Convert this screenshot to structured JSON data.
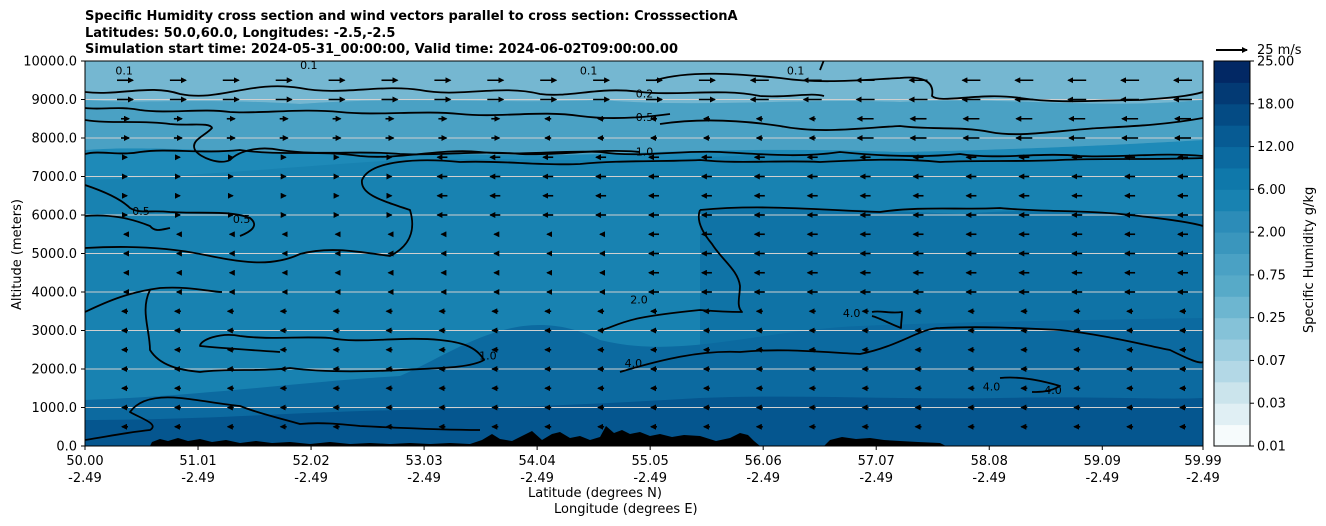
{
  "title": {
    "line1": "Specific Humidity cross section and wind vectors parallel to cross section: CrosssectionA",
    "line2": "Latitudes: 50.0,60.0, Longitudes: -2.5,-2.5",
    "line3": "Simulation start time: 2024-05-31_00:00:00, Valid time: 2024-06-02T09:00:00.00"
  },
  "chart_data": {
    "type": "contour",
    "xlabel": "Latitude (degrees N)",
    "xlabel2": "Longitude (degrees E)",
    "ylabel": "Altitude (meters)",
    "ylim": [
      0,
      10000
    ],
    "xlim": [
      50.0,
      59.99
    ],
    "x_ticks": [
      {
        "lat": "50.00",
        "lon": "-2.49",
        "value": 50.0
      },
      {
        "lat": "51.01",
        "lon": "-2.49",
        "value": 51.01
      },
      {
        "lat": "52.02",
        "lon": "-2.49",
        "value": 52.02
      },
      {
        "lat": "53.03",
        "lon": "-2.49",
        "value": 53.03
      },
      {
        "lat": "54.04",
        "lon": "-2.49",
        "value": 54.04
      },
      {
        "lat": "55.05",
        "lon": "-2.49",
        "value": 55.05
      },
      {
        "lat": "56.06",
        "lon": "-2.49",
        "value": 56.06
      },
      {
        "lat": "57.07",
        "lon": "-2.49",
        "value": 57.07
      },
      {
        "lat": "58.08",
        "lon": "-2.49",
        "value": 58.08
      },
      {
        "lat": "59.09",
        "lon": "-2.49",
        "value": 59.09
      },
      {
        "lat": "59.99",
        "lon": "-2.49",
        "value": 59.99
      }
    ],
    "y_ticks": [
      "0.0",
      "1000.0",
      "2000.0",
      "3000.0",
      "4000.0",
      "5000.0",
      "6000.0",
      "7000.0",
      "8000.0",
      "9000.0",
      "10000.0"
    ],
    "colorbar": {
      "label": "Specific Humidity g/kg",
      "tick_labels": [
        "0.01",
        "0.03",
        "0.07",
        "0.25",
        "0.75",
        "2.00",
        "6.00",
        "12.00",
        "18.00",
        "25.00"
      ],
      "levels": 18
    },
    "quiver_key": {
      "label": "25 m/s",
      "speed": 25
    },
    "contour_labels": [
      {
        "text": "0.1",
        "x": 50.35,
        "y": 9750
      },
      {
        "text": "0.1",
        "x": 52.0,
        "y": 9900
      },
      {
        "text": "0.1",
        "x": 54.5,
        "y": 9750
      },
      {
        "text": "0.1",
        "x": 56.35,
        "y": 9750
      },
      {
        "text": "0.2",
        "x": 55.0,
        "y": 9150
      },
      {
        "text": "0.5",
        "x": 55.0,
        "y": 8550
      },
      {
        "text": "1.0",
        "x": 55.0,
        "y": 7650
      },
      {
        "text": "0.5",
        "x": 50.5,
        "y": 6100
      },
      {
        "text": "0.5",
        "x": 51.4,
        "y": 5900
      },
      {
        "text": "2.0",
        "x": 54.95,
        "y": 3800
      },
      {
        "text": "1.0",
        "x": 53.6,
        "y": 2350
      },
      {
        "text": "4.0",
        "x": 54.9,
        "y": 2150
      },
      {
        "text": "4.0",
        "x": 56.85,
        "y": 3450
      },
      {
        "text": "4.0",
        "x": 58.1,
        "y": 1550
      },
      {
        "text": "4.0",
        "x": 58.65,
        "y": 1450
      }
    ]
  }
}
